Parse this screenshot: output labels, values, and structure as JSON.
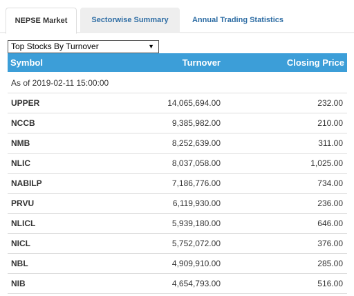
{
  "tabs": [
    {
      "label": "NEPSE Market",
      "active": true
    },
    {
      "label": "Sectorwise Summary",
      "active": false
    },
    {
      "label": "Annual Trading Statistics",
      "active": false
    }
  ],
  "dropdown": {
    "selected": "Top Stocks By Turnover",
    "arrow": "▼"
  },
  "table": {
    "headers": {
      "symbol": "Symbol",
      "turnover": "Turnover",
      "closing": "Closing Price"
    },
    "as_of": "As of 2019-02-11 15:00:00",
    "rows": [
      {
        "symbol": "UPPER",
        "turnover": "14,065,694.00",
        "closing": "232.00"
      },
      {
        "symbol": "NCCB",
        "turnover": "9,385,982.00",
        "closing": "210.00"
      },
      {
        "symbol": "NMB",
        "turnover": "8,252,639.00",
        "closing": "311.00"
      },
      {
        "symbol": "NLIC",
        "turnover": "8,037,058.00",
        "closing": "1,025.00"
      },
      {
        "symbol": "NABILP",
        "turnover": "7,186,776.00",
        "closing": "734.00"
      },
      {
        "symbol": "PRVU",
        "turnover": "6,119,930.00",
        "closing": "236.00"
      },
      {
        "symbol": "NLICL",
        "turnover": "5,939,180.00",
        "closing": "646.00"
      },
      {
        "symbol": "NICL",
        "turnover": "5,752,072.00",
        "closing": "376.00"
      },
      {
        "symbol": "NBL",
        "turnover": "4,909,910.00",
        "closing": "285.00"
      },
      {
        "symbol": "NIB",
        "turnover": "4,654,793.00",
        "closing": "516.00"
      }
    ]
  },
  "colors": {
    "header_bg": "#3c9ed8",
    "tab_link": "#2e6da4"
  }
}
